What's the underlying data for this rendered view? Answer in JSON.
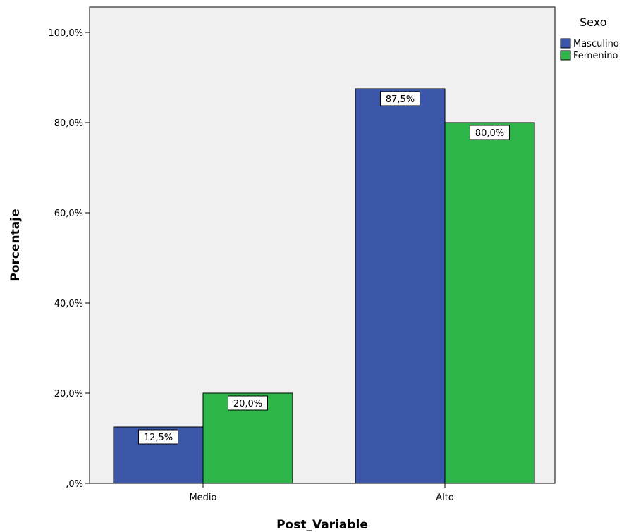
{
  "chart_data": {
    "type": "bar",
    "categories": [
      "Medio",
      "Alto"
    ],
    "series": [
      {
        "name": "Masculino",
        "values": [
          12.5,
          87.5
        ],
        "labels": [
          "12,5%",
          "87,5%"
        ],
        "color": "#3c57a9"
      },
      {
        "name": "Femenino",
        "values": [
          20.0,
          80.0
        ],
        "labels": [
          "20,0%",
          "80,0%"
        ],
        "color": "#2eb64a"
      }
    ],
    "xlabel": "Post_Variable",
    "ylabel": "Porcentaje",
    "ylim": [
      0,
      100
    ],
    "yticks": [
      0,
      20,
      40,
      60,
      80,
      100
    ],
    "ytick_labels": [
      ",0%",
      "20,0%",
      "40,0%",
      "60,0%",
      "80,0%",
      "100,0%"
    ],
    "legend": {
      "title": "Sexo",
      "placement": "top-right"
    },
    "plot_background": "#f0f0f0",
    "grid": false
  }
}
